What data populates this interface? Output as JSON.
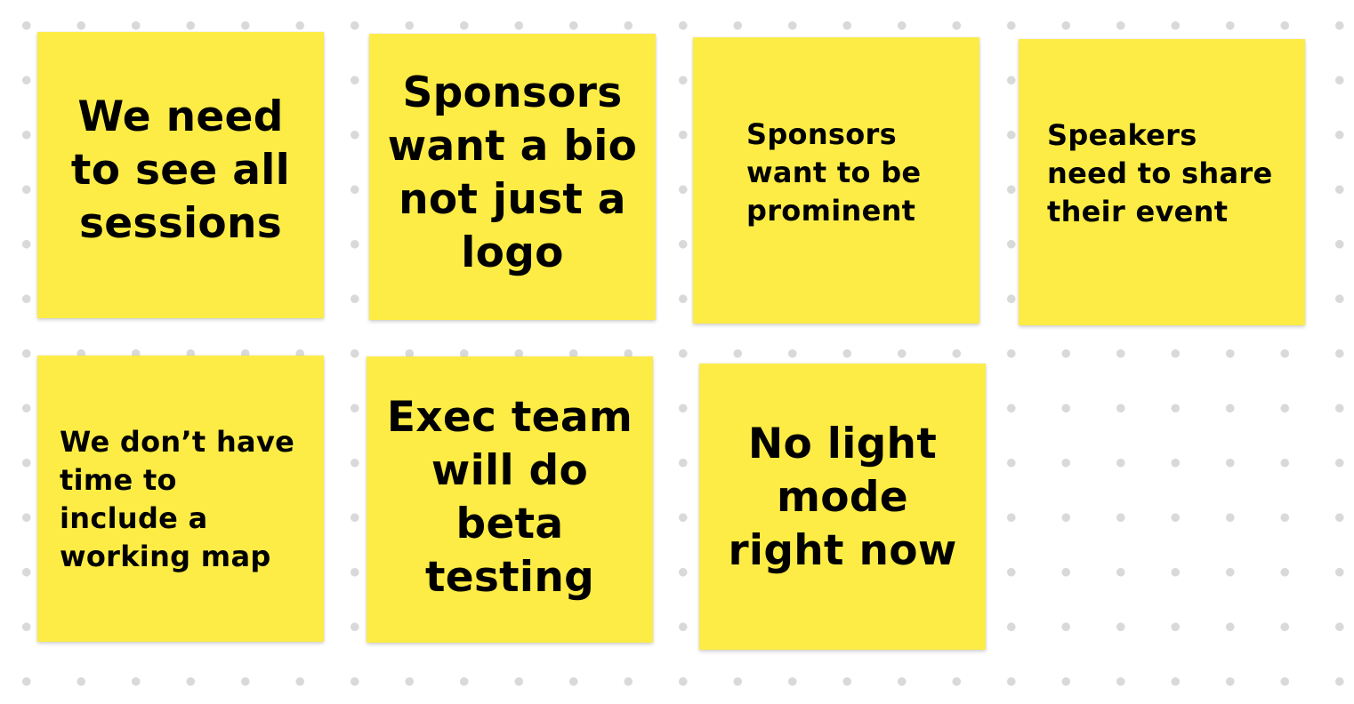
{
  "board": {
    "notes": [
      {
        "text": "We need\nto see all\nsessions"
      },
      {
        "text": "Sponsors\nwant a bio\nnot just a\nlogo"
      },
      {
        "text": "Sponsors\nwant to be\nprominent"
      },
      {
        "text": "Speakers\nneed to share\ntheir event"
      },
      {
        "text": "We don’t have\ntime to\ninclude a\nworking map"
      },
      {
        "text": "Exec team\nwill do\nbeta\ntesting"
      },
      {
        "text": "No light\nmode\nright now"
      }
    ]
  },
  "colors": {
    "note": "#fcec45",
    "background": "#ffffff",
    "dot": "#d9d9d9",
    "text": "#000000"
  }
}
